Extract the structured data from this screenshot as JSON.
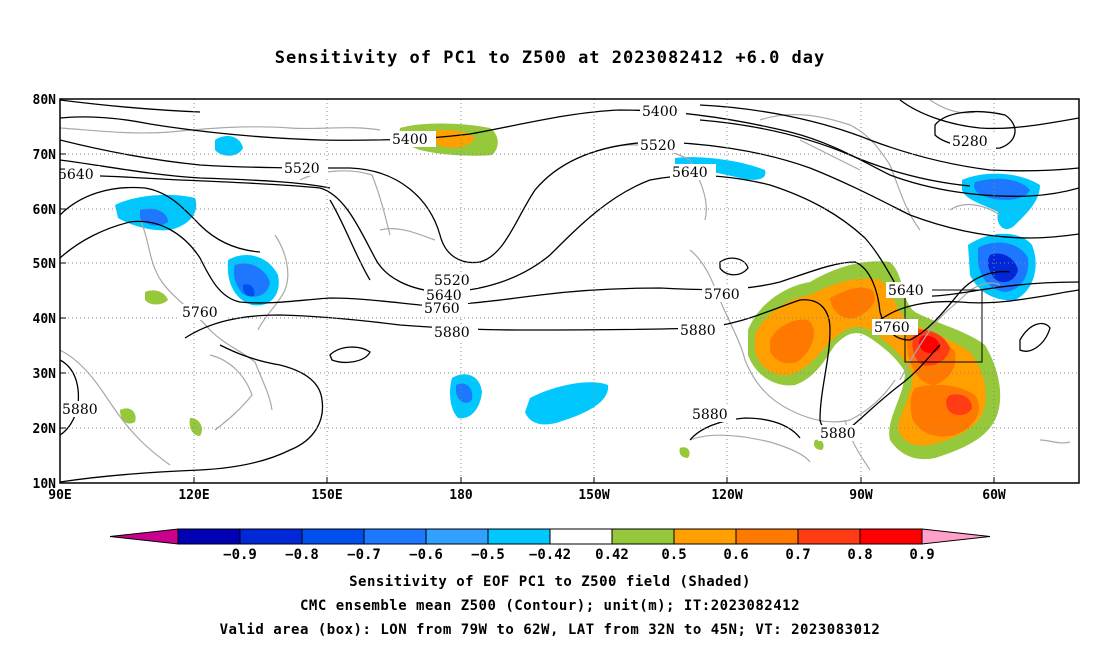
{
  "title": "Sensitivity of PC1 to Z500 at 2023082412 +6.0 day",
  "lat_labels": [
    "80N",
    "70N",
    "60N",
    "50N",
    "40N",
    "30N",
    "20N",
    "10N"
  ],
  "lon_labels": [
    "90E",
    "120E",
    "150E",
    "180",
    "150W",
    "120W",
    "90W",
    "60W"
  ],
  "contour_labels": {
    "c5400_left": "5400",
    "c5400_top": "5400",
    "c5520_left": "5520",
    "c5520_top": "5520",
    "c5520_mid": "5520",
    "c5640_left": "5640",
    "c5640_top": "5640",
    "c5640_mid": "5640",
    "c5640_east": "5640",
    "c5760_left": "5760",
    "c5760_mid": "5760",
    "c5760_right": "5760",
    "c5760_east": "5760",
    "c5880_mid": "5880",
    "c5880_left": "5880",
    "c5880_bottom": "5880",
    "c5880_carib": "5880",
    "c5880_gulf": "5880",
    "c5280": "5280"
  },
  "colorbar": {
    "labels": [
      "−0.9",
      "−0.8",
      "−0.7",
      "−0.6",
      "−0.5",
      "−0.42",
      "0.42",
      "0.5",
      "0.6",
      "0.7",
      "0.8",
      "0.9"
    ],
    "colors": [
      "#c8008c",
      "#0000b4",
      "#0028d8",
      "#0050f0",
      "#1e78ff",
      "#32a0ff",
      "#00c8ff",
      "#ffffff",
      "#96c83c",
      "#ffa000",
      "#ff7800",
      "#ff3c14",
      "#ff0000",
      "#ffa0c8"
    ]
  },
  "captions": {
    "line1": "Sensitivity of EOF PC1 to Z500 field (Shaded)",
    "line2": "CMC ensemble mean Z500 (Contour); unit(m); IT:2023082412",
    "line3": "Valid area (box): LON from 79W to 62W, LAT from 32N to 45N; VT: 2023083012"
  }
}
